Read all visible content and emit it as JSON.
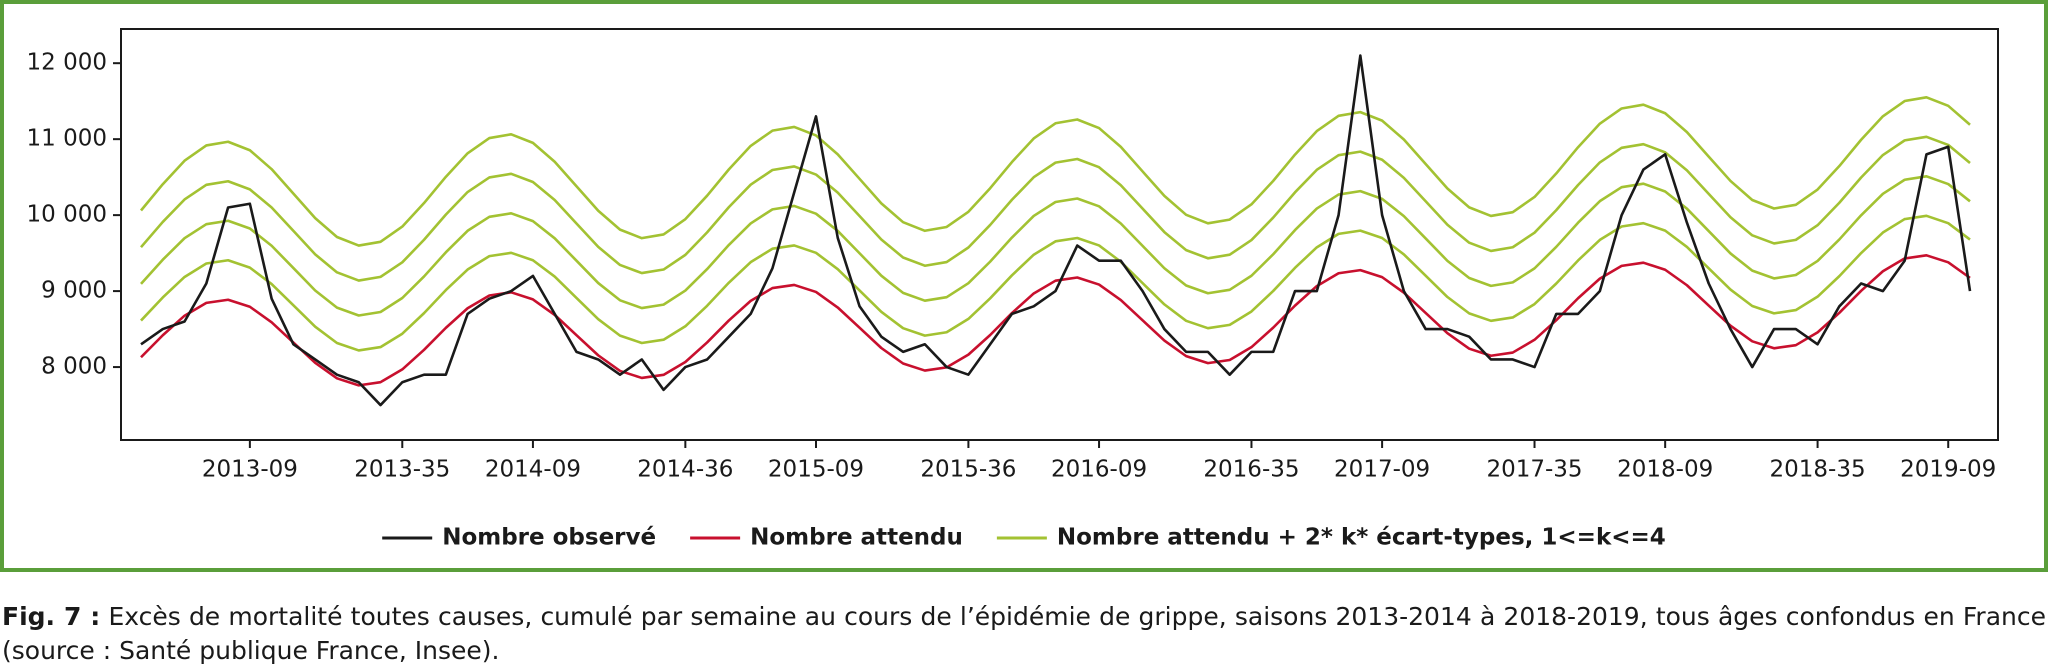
{
  "chart_data": {
    "type": "line",
    "caption": {
      "label": "Fig. 7 :",
      "text": "Excès de mortalité toutes causes, cumulé par semaine au cours de l’épidémie de grippe, saisons 2013-2014 à 2018-2019, tous âges confondus en France (source : Santé publique France, Insee)."
    },
    "categories": [
      null,
      null,
      null,
      null,
      null,
      "2013-09",
      null,
      null,
      null,
      null,
      null,
      null,
      "2013-35",
      null,
      null,
      null,
      null,
      null,
      "2014-09",
      null,
      null,
      null,
      null,
      null,
      null,
      "2014-36",
      null,
      null,
      null,
      null,
      null,
      "2015-09",
      null,
      null,
      null,
      null,
      null,
      null,
      "2015-36",
      null,
      null,
      null,
      null,
      null,
      "2016-09",
      null,
      null,
      null,
      null,
      null,
      null,
      "2016-35",
      null,
      null,
      null,
      null,
      null,
      "2017-09",
      null,
      null,
      null,
      null,
      null,
      null,
      "2017-35",
      null,
      null,
      null,
      null,
      null,
      "2018-09",
      null,
      null,
      null,
      null,
      null,
      null,
      "2018-35",
      null,
      null,
      null,
      null,
      null,
      "2019-09",
      null
    ],
    "ylim": [
      7040,
      12450
    ],
    "yticks": [
      {
        "value": 8000,
        "label": "8 000"
      },
      {
        "value": 9000,
        "label": "9 000"
      },
      {
        "value": 10000,
        "label": "10 000"
      },
      {
        "value": 11000,
        "label": "11 000"
      },
      {
        "value": 12000,
        "label": "12 000"
      }
    ],
    "legend": "bottom",
    "series": [
      {
        "name": "Nombre attendu + 2* k* écart-types, 1<=k<=4",
        "color": "#a3c232",
        "values": [
          8612,
          8916,
          9186,
          9363,
          9406,
          9309,
          9093,
          8813,
          8532,
          8317,
          8219,
          8263,
          8439,
          8710,
          9013,
          9284,
          9460,
          9504,
          9406,
          9191,
          8910,
          8630,
          8414,
          8317,
          8360,
          8537,
          8807,
          9111,
          9381,
          9558,
          9601,
          9504,
          9288,
          9008,
          8727,
          8512,
          8414,
          8458,
          8634,
          8905,
          9208,
          9479,
          9655,
          9699,
          9601,
          9386,
          9105,
          8825,
          8609,
          8512,
          8555,
          8732,
          9002,
          9306,
          9576,
          9753,
          9796,
          9699,
          9483,
          9203,
          8922,
          8707,
          8609,
          8653,
          8829,
          9100,
          9403,
          9674,
          9850,
          9894,
          9796,
          9581,
          9300,
          9020,
          8804,
          8707,
          8750,
          8927,
          9197,
          9501,
          9771,
          9948,
          9991,
          9894,
          9678
        ]
      },
      {
        "color": "#a3c232",
        "values": [
          9095,
          9413,
          9696,
          9881,
          9926,
          9824,
          9597,
          9303,
          9008,
          8782,
          8679,
          8725,
          8909,
          9193,
          9510,
          9794,
          9978,
          10024,
          9921,
          9695,
          9400,
          9106,
          8879,
          8777,
          8822,
          9007,
          9290,
          9608,
          9891,
          10076,
          10121,
          10019,
          9792,
          9498,
          9203,
          8977,
          8874,
          8920,
          9104,
          9388,
          9705,
          9989,
          10173,
          10219,
          10116,
          9890,
          9595,
          9301,
          9074,
          8972,
          9017,
          9202,
          9485,
          9803,
          10086,
          10271,
          10316,
          10214,
          9987,
          9693,
          9398,
          9172,
          9069,
          9115,
          9299,
          9583,
          9900,
          10184,
          10368,
          10414,
          10311,
          10085,
          9790,
          9496,
          9269,
          9167,
          9212,
          9397,
          9680,
          9998,
          10281,
          10466,
          10511,
          10409,
          10182
        ]
      },
      {
        "color": "#a3c232",
        "values": [
          9578,
          9910,
          10206,
          10399,
          10446,
          10339,
          10101,
          9793,
          9484,
          9247,
          9139,
          9187,
          9379,
          9676,
          10007,
          10304,
          10496,
          10544,
          10436,
          10199,
          9890,
          9582,
          9344,
          9237,
          9284,
          9477,
          9773,
          10105,
          10401,
          10594,
          10641,
          10534,
          10296,
          9988,
          9679,
          9442,
          9334,
          9382,
          9574,
          9871,
          10202,
          10499,
          10691,
          10739,
          10631,
          10394,
          10085,
          9777,
          9539,
          9432,
          9479,
          9672,
          9968,
          10300,
          10596,
          10789,
          10836,
          10729,
          10491,
          10183,
          9874,
          9637,
          9529,
          9577,
          9769,
          10066,
          10397,
          10694,
          10886,
          10934,
          10826,
          10589,
          10280,
          9972,
          9734,
          9627,
          9674,
          9867,
          10163,
          10495,
          10791,
          10984,
          11031,
          10924,
          10686
        ]
      },
      {
        "color": "#a3c232",
        "values": [
          10061,
          10407,
          10716,
          10917,
          10966,
          10854,
          10605,
          10283,
          9960,
          9712,
          9599,
          9649,
          9849,
          10159,
          10504,
          10814,
          11014,
          11064,
          10951,
          10703,
          10380,
          10058,
          9809,
          9697,
          9746,
          9947,
          10256,
          10602,
          10911,
          11112,
          11161,
          11049,
          10800,
          10478,
          10155,
          9907,
          9794,
          9844,
          10044,
          10354,
          10699,
          11009,
          11209,
          11259,
          11146,
          10898,
          10575,
          10253,
          10004,
          9892,
          9941,
          10142,
          10451,
          10797,
          11106,
          11307,
          11356,
          11244,
          10995,
          10673,
          10350,
          10102,
          9989,
          10039,
          10239,
          10549,
          10894,
          11204,
          11404,
          11454,
          11341,
          11093,
          10770,
          10450,
          10199,
          10087,
          10136,
          10337,
          10646,
          10992,
          11301,
          11502,
          11551,
          11439,
          11190
        ]
      },
      {
        "name": "Nombre attendu",
        "color": "#c8102e",
        "values": [
          8129,
          8419,
          8676,
          8845,
          8886,
          8794,
          8589,
          8323,
          8056,
          7852,
          7759,
          7801,
          7969,
          8227,
          8516,
          8774,
          8942,
          8984,
          8891,
          8687,
          8420,
          8154,
          7949,
          7857,
          7898,
          8067,
          8324,
          8614,
          8871,
          9040,
          9081,
          8989,
          8784,
          8518,
          8251,
          8047,
          7954,
          7996,
          8164,
          8422,
          8711,
          8969,
          9137,
          9179,
          9086,
          8882,
          8615,
          8349,
          8144,
          8052,
          8093,
          8262,
          8519,
          8809,
          9066,
          9235,
          9276,
          9184,
          8979,
          8713,
          8446,
          8242,
          8149,
          8191,
          8359,
          8617,
          8906,
          9164,
          9332,
          9374,
          9281,
          9077,
          8810,
          8544,
          8339,
          8247,
          8288,
          8457,
          8714,
          9004,
          9261,
          9430,
          9471,
          9379,
          9174
        ]
      },
      {
        "name": "Nombre observé",
        "color": "#1a1a1a",
        "values": [
          8300,
          8500,
          8600,
          9100,
          10100,
          10150,
          8900,
          8300,
          8100,
          7900,
          7800,
          7500,
          7800,
          7900,
          7900,
          8700,
          8900,
          9000,
          9200,
          8700,
          8200,
          8100,
          7900,
          8100,
          7700,
          8000,
          8100,
          8400,
          8700,
          9300,
          10300,
          11300,
          9700,
          8800,
          8400,
          8200,
          8300,
          8000,
          7900,
          8300,
          8700,
          8800,
          9000,
          9600,
          9400,
          9400,
          9000,
          8500,
          8200,
          8200,
          7900,
          8200,
          8200,
          9000,
          9000,
          10000,
          12100,
          10000,
          9000,
          8500,
          8500,
          8400,
          8100,
          8100,
          8000,
          8700,
          8700,
          9000,
          10000,
          10600,
          10800,
          9900,
          9100,
          8500,
          8000,
          8500,
          8500,
          8300,
          8800,
          9100,
          9000,
          9400,
          10800,
          10900,
          9000
        ]
      }
    ]
  }
}
